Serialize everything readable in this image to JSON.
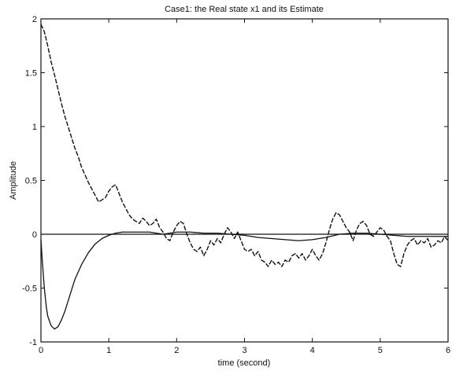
{
  "chart_data": {
    "type": "line",
    "title": "Case1: the Real state x1 and its Estimate",
    "xlabel": "time (second)",
    "ylabel": "Amplitude",
    "xlim": [
      0,
      6
    ],
    "ylim": [
      -1,
      2
    ],
    "xticks": [
      0,
      1,
      2,
      3,
      4,
      5,
      6
    ],
    "xtick_labels": [
      "0",
      "1",
      "2",
      "3",
      "4",
      "5",
      "6"
    ],
    "yticks": [
      -1,
      -0.5,
      0,
      0.5,
      1,
      1.5,
      2
    ],
    "ytick_labels": [
      "-1",
      "-0.5",
      "0",
      "0.5",
      "1",
      "1.5",
      "2"
    ],
    "grid": false,
    "reference_line": {
      "y": 0,
      "color": "#111111"
    },
    "series": [
      {
        "style": "dashed-noisy",
        "color": "#111111",
        "x": [
          0.0,
          0.05,
          0.1,
          0.15,
          0.2,
          0.25,
          0.3,
          0.35,
          0.4,
          0.45,
          0.5,
          0.55,
          0.6,
          0.65,
          0.7,
          0.75,
          0.8,
          0.85,
          0.9,
          0.95,
          1.0,
          1.05,
          1.1,
          1.15,
          1.2,
          1.25,
          1.3,
          1.35,
          1.4,
          1.45,
          1.5,
          1.55,
          1.6,
          1.65,
          1.7,
          1.75,
          1.8,
          1.85,
          1.9,
          1.95,
          2.0,
          2.05,
          2.1,
          2.15,
          2.2,
          2.25,
          2.3,
          2.35,
          2.4,
          2.45,
          2.5,
          2.55,
          2.6,
          2.65,
          2.7,
          2.75,
          2.8,
          2.85,
          2.9,
          2.95,
          3.0,
          3.05,
          3.1,
          3.15,
          3.2,
          3.25,
          3.3,
          3.35,
          3.4,
          3.45,
          3.5,
          3.55,
          3.6,
          3.65,
          3.7,
          3.75,
          3.8,
          3.85,
          3.9,
          3.95,
          4.0,
          4.05,
          4.1,
          4.15,
          4.2,
          4.25,
          4.3,
          4.35,
          4.4,
          4.45,
          4.5,
          4.55,
          4.6,
          4.65,
          4.7,
          4.75,
          4.8,
          4.85,
          4.9,
          4.95,
          5.0,
          5.05,
          5.1,
          5.15,
          5.2,
          5.25,
          5.3,
          5.35,
          5.4,
          5.45,
          5.5,
          5.55,
          5.6,
          5.65,
          5.7,
          5.75,
          5.8,
          5.85,
          5.9,
          5.95,
          6.0
        ],
        "y": [
          1.95,
          1.88,
          1.75,
          1.6,
          1.48,
          1.35,
          1.22,
          1.1,
          1.0,
          0.9,
          0.8,
          0.72,
          0.62,
          0.55,
          0.48,
          0.42,
          0.36,
          0.3,
          0.32,
          0.34,
          0.4,
          0.44,
          0.46,
          0.38,
          0.3,
          0.24,
          0.18,
          0.14,
          0.12,
          0.1,
          0.15,
          0.12,
          0.08,
          0.1,
          0.14,
          0.06,
          0.02,
          -0.04,
          -0.06,
          0.02,
          0.08,
          0.12,
          0.1,
          0.0,
          -0.08,
          -0.14,
          -0.16,
          -0.12,
          -0.2,
          -0.14,
          -0.06,
          -0.1,
          -0.04,
          -0.08,
          0.0,
          0.06,
          0.02,
          -0.04,
          0.02,
          -0.06,
          -0.14,
          -0.16,
          -0.14,
          -0.2,
          -0.16,
          -0.24,
          -0.26,
          -0.3,
          -0.24,
          -0.28,
          -0.26,
          -0.3,
          -0.24,
          -0.26,
          -0.2,
          -0.18,
          -0.22,
          -0.18,
          -0.24,
          -0.2,
          -0.14,
          -0.2,
          -0.24,
          -0.18,
          -0.08,
          0.04,
          0.14,
          0.2,
          0.18,
          0.12,
          0.06,
          0.02,
          -0.06,
          0.04,
          0.1,
          0.12,
          0.08,
          0.0,
          -0.02,
          0.02,
          0.06,
          0.04,
          -0.02,
          -0.06,
          -0.18,
          -0.28,
          -0.3,
          -0.18,
          -0.1,
          -0.06,
          -0.04,
          -0.1,
          -0.06,
          -0.08,
          -0.04,
          -0.12,
          -0.1,
          -0.06,
          -0.08,
          -0.02,
          -0.06
        ]
      },
      {
        "style": "solid",
        "color": "#111111",
        "x": [
          0.0,
          0.02,
          0.05,
          0.08,
          0.1,
          0.15,
          0.2,
          0.25,
          0.3,
          0.35,
          0.4,
          0.45,
          0.5,
          0.6,
          0.7,
          0.8,
          0.9,
          1.0,
          1.1,
          1.2,
          1.3,
          1.4,
          1.5,
          1.6,
          1.7,
          1.8,
          1.9,
          2.0,
          2.2,
          2.4,
          2.6,
          2.8,
          3.0,
          3.2,
          3.4,
          3.6,
          3.8,
          4.0,
          4.2,
          4.4,
          4.6,
          4.8,
          5.0,
          5.2,
          5.4,
          5.6,
          5.8,
          6.0
        ],
        "y": [
          -0.05,
          -0.25,
          -0.5,
          -0.68,
          -0.76,
          -0.85,
          -0.88,
          -0.86,
          -0.8,
          -0.72,
          -0.62,
          -0.52,
          -0.42,
          -0.28,
          -0.17,
          -0.09,
          -0.04,
          -0.01,
          0.01,
          0.02,
          0.02,
          0.02,
          0.02,
          0.02,
          0.01,
          0.0,
          0.01,
          0.02,
          0.02,
          0.01,
          0.01,
          0.0,
          -0.01,
          -0.03,
          -0.04,
          -0.05,
          -0.06,
          -0.05,
          -0.03,
          0.0,
          0.01,
          0.01,
          0.0,
          -0.01,
          -0.02,
          -0.02,
          -0.02,
          -0.02
        ]
      }
    ]
  }
}
